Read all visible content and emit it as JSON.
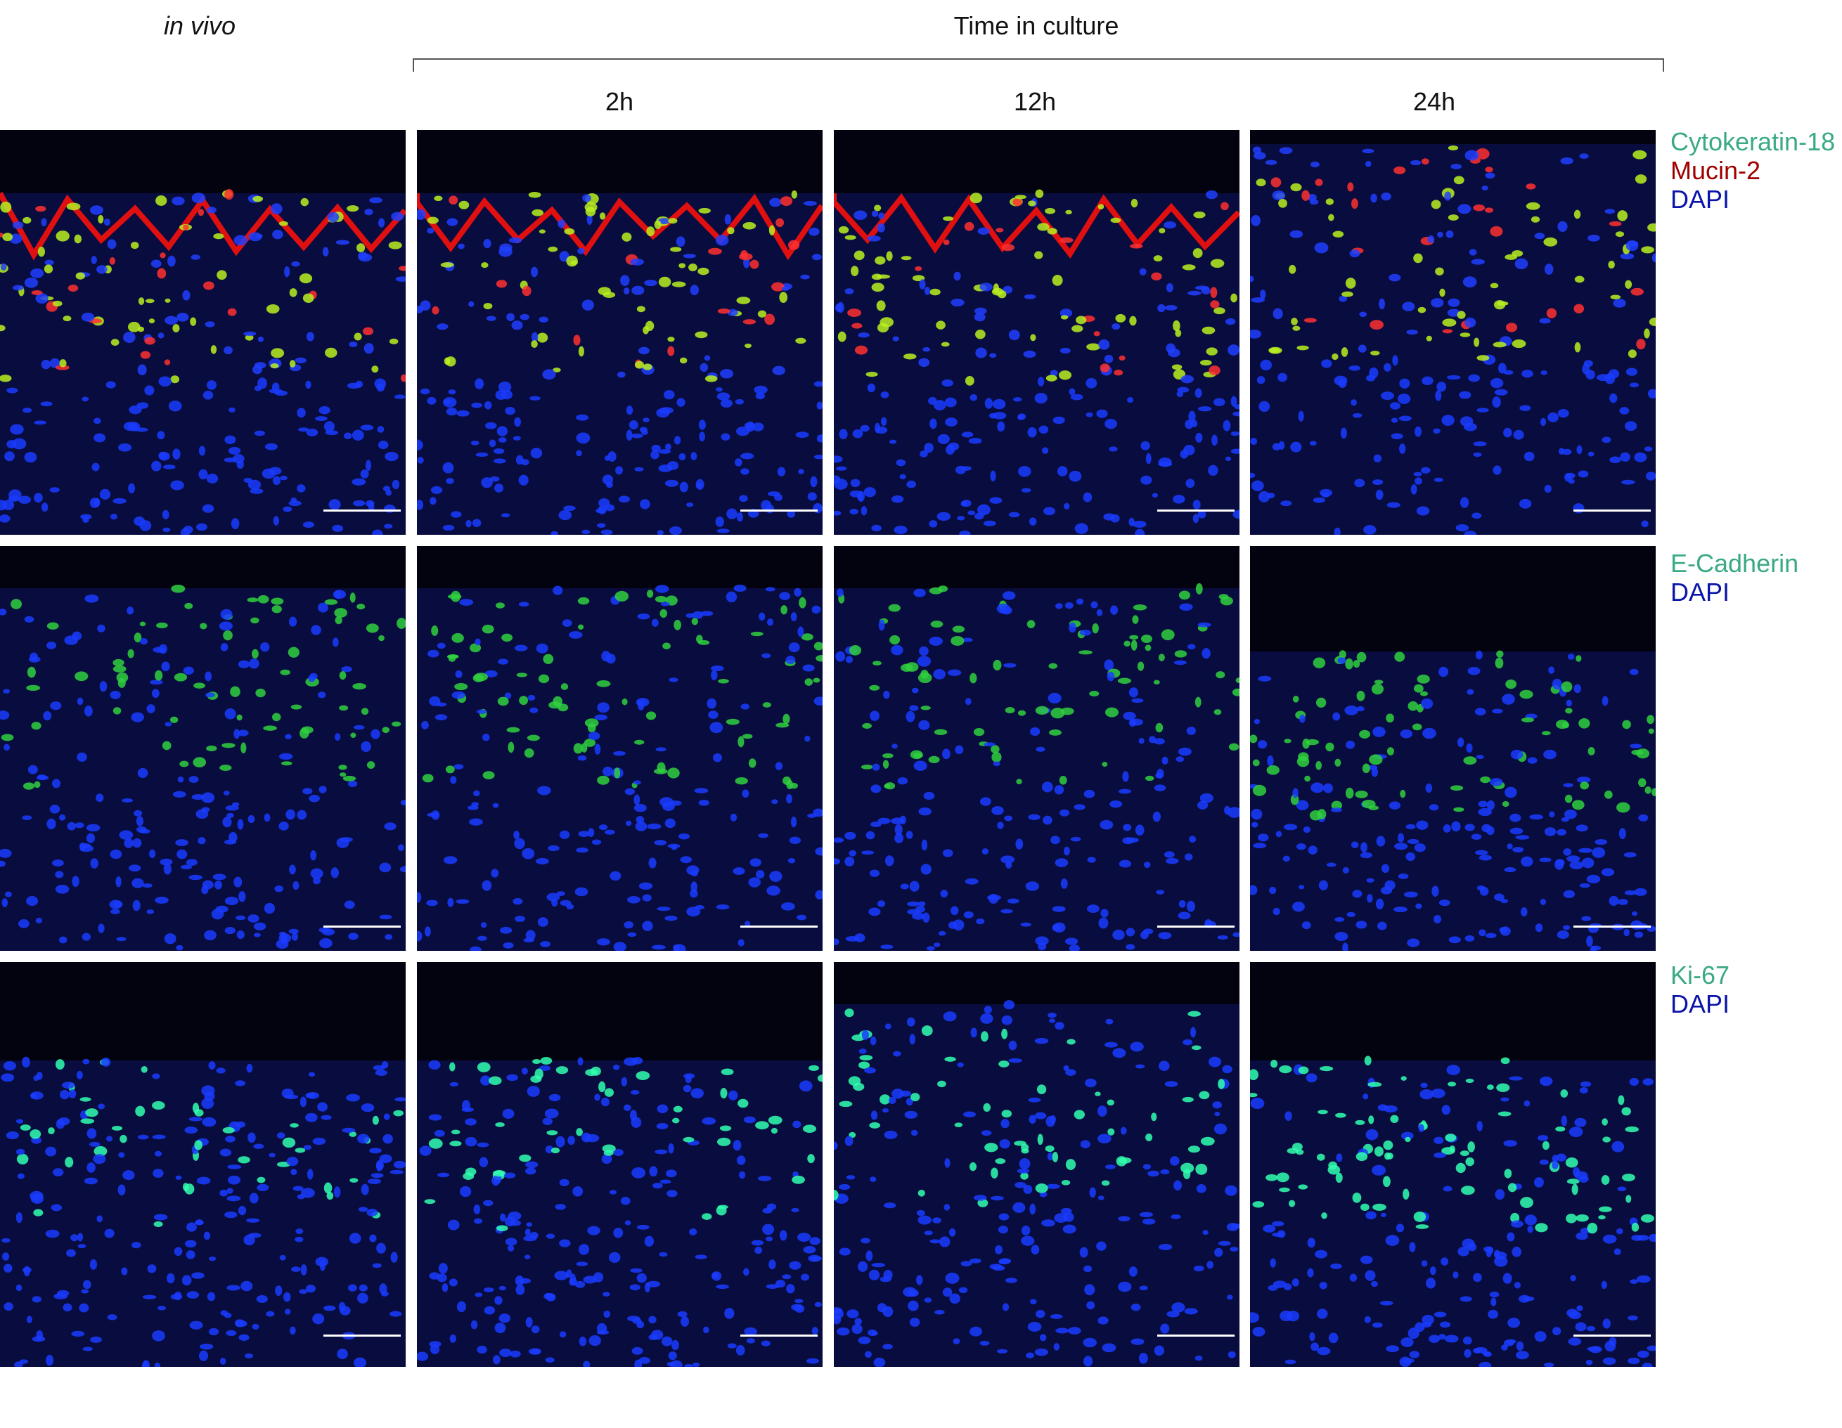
{
  "header": {
    "in_vivo": "in vivo",
    "time_in_culture": "Time in culture",
    "timepoints": [
      "2h",
      "12h",
      "24h"
    ]
  },
  "rows": [
    {
      "stains": [
        {
          "label": "Cytokeratin-18",
          "color": "#3aa985"
        },
        {
          "label": "Mucin-2",
          "color": "#a00000"
        },
        {
          "label": "DAPI",
          "color": "#0a14a8"
        }
      ],
      "channels": [
        "green",
        "red",
        "blue"
      ]
    },
    {
      "stains": [
        {
          "label": "E-Cadherin",
          "color": "#3aa985"
        },
        {
          "label": "DAPI",
          "color": "#0a14a8"
        }
      ],
      "channels": [
        "green",
        "blue"
      ]
    },
    {
      "stains": [
        {
          "label": "Ki-67",
          "color": "#3aa985"
        },
        {
          "label": "DAPI",
          "color": "#0a14a8"
        }
      ],
      "channels": [
        "green",
        "blue"
      ]
    }
  ],
  "columns": [
    "in vivo",
    "2h",
    "12h",
    "24h"
  ]
}
